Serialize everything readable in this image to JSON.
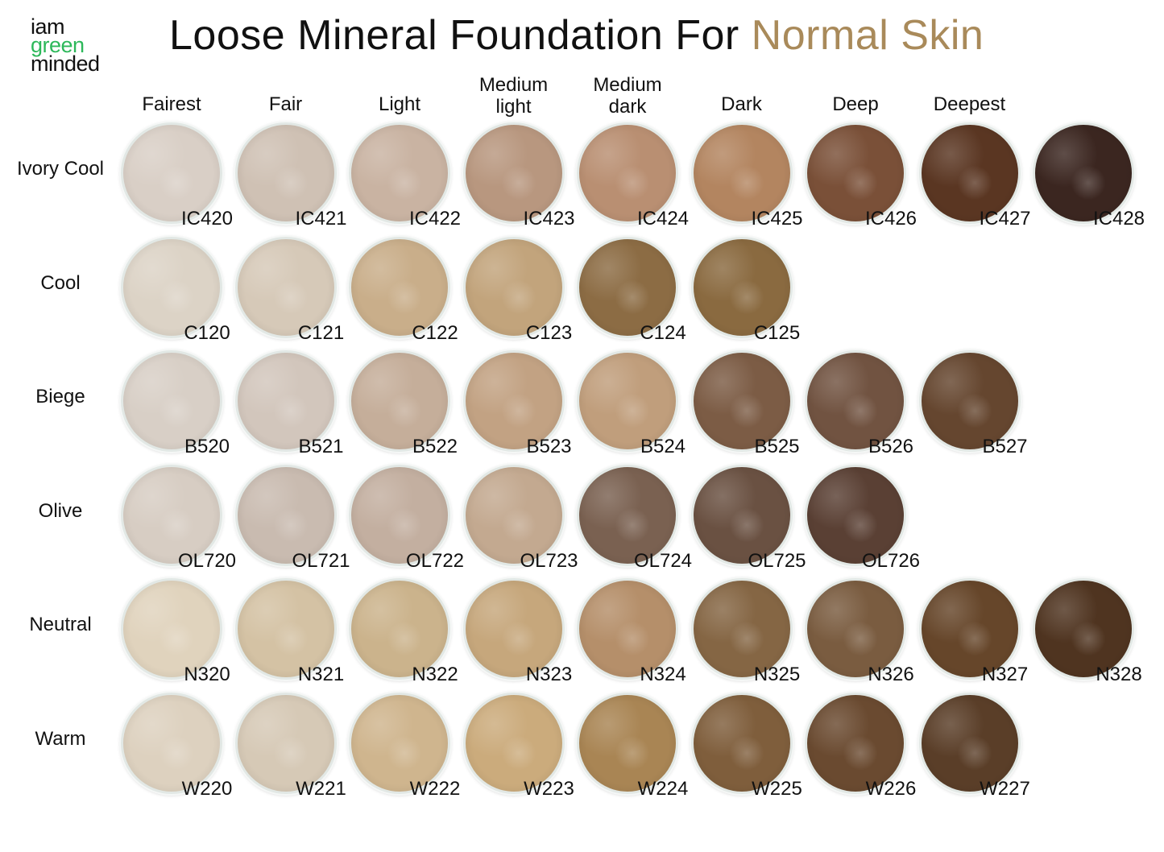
{
  "logo": {
    "line1": "iam",
    "line2": "green",
    "line3": "minded"
  },
  "title": {
    "main": "Loose Mineral Foundation For ",
    "accent": "Normal Skin"
  },
  "colors": {
    "accent": "#a98a5a",
    "logo_green": "#2db85a"
  },
  "columns": [
    "Fairest",
    "Fair",
    "Light",
    "Medium\nlight",
    "Medium\ndark",
    "Dark",
    "Deep",
    "Deepest"
  ],
  "rows": [
    {
      "label": "Ivory Cool",
      "swatches": [
        {
          "code": "IC420",
          "color": "#d9cfc6"
        },
        {
          "code": "IC421",
          "color": "#cfc1b4"
        },
        {
          "code": "IC422",
          "color": "#c9b3a2"
        },
        {
          "code": "IC423",
          "color": "#b8977f"
        },
        {
          "code": "IC424",
          "color": "#b98f72"
        },
        {
          "code": "IC425",
          "color": "#b38560"
        },
        {
          "code": "IC426",
          "color": "#7a5038"
        },
        {
          "code": "IC427",
          "color": "#5a3622"
        },
        {
          "code": "IC428",
          "color": "#3b2620"
        }
      ]
    },
    {
      "label": "Cool",
      "swatches": [
        {
          "code": "C120",
          "color": "#dcd3c6"
        },
        {
          "code": "C121",
          "color": "#d6c9b8"
        },
        {
          "code": "C122",
          "color": "#c9ae8a"
        },
        {
          "code": "C123",
          "color": "#c2a47c"
        },
        {
          "code": "C124",
          "color": "#8c6c44"
        },
        {
          "code": "C125",
          "color": "#8a6a40"
        }
      ]
    },
    {
      "label": "Biege",
      "swatches": [
        {
          "code": "B520",
          "color": "#d8cfc6"
        },
        {
          "code": "B521",
          "color": "#d2c6bc"
        },
        {
          "code": "B522",
          "color": "#c5ae9a"
        },
        {
          "code": "B523",
          "color": "#c2a283"
        },
        {
          "code": "B524",
          "color": "#c09e7c"
        },
        {
          "code": "B525",
          "color": "#7c5c45"
        },
        {
          "code": "B526",
          "color": "#715341"
        },
        {
          "code": "B527",
          "color": "#65462f"
        }
      ]
    },
    {
      "label": "Olive",
      "swatches": [
        {
          "code": "OL720",
          "color": "#d7cdc3"
        },
        {
          "code": "OL721",
          "color": "#c9bbb0"
        },
        {
          "code": "OL722",
          "color": "#c3afa0"
        },
        {
          "code": "OL723",
          "color": "#c3a990"
        },
        {
          "code": "OL724",
          "color": "#7a6151"
        },
        {
          "code": "OL725",
          "color": "#6a5142"
        },
        {
          "code": "OL726",
          "color": "#5a4034"
        }
      ]
    },
    {
      "label": "Neutral",
      "swatches": [
        {
          "code": "N320",
          "color": "#e0d3bd"
        },
        {
          "code": "N321",
          "color": "#d4c2a4"
        },
        {
          "code": "N322",
          "color": "#cbb38c"
        },
        {
          "code": "N323",
          "color": "#c6a77c"
        },
        {
          "code": "N324",
          "color": "#b58f6a"
        },
        {
          "code": "N325",
          "color": "#856644"
        },
        {
          "code": "N326",
          "color": "#7a5c40"
        },
        {
          "code": "N327",
          "color": "#66462a"
        },
        {
          "code": "N328",
          "color": "#4f3420"
        }
      ]
    },
    {
      "label": "Warm",
      "swatches": [
        {
          "code": "W220",
          "color": "#ddd1bf"
        },
        {
          "code": "W221",
          "color": "#d6c9b6"
        },
        {
          "code": "W222",
          "color": "#cfb58e"
        },
        {
          "code": "W223",
          "color": "#cbab7c"
        },
        {
          "code": "W224",
          "color": "#a98554"
        },
        {
          "code": "W225",
          "color": "#7f5e3c"
        },
        {
          "code": "W226",
          "color": "#6a4a30"
        },
        {
          "code": "W227",
          "color": "#5a3e28"
        }
      ]
    }
  ]
}
